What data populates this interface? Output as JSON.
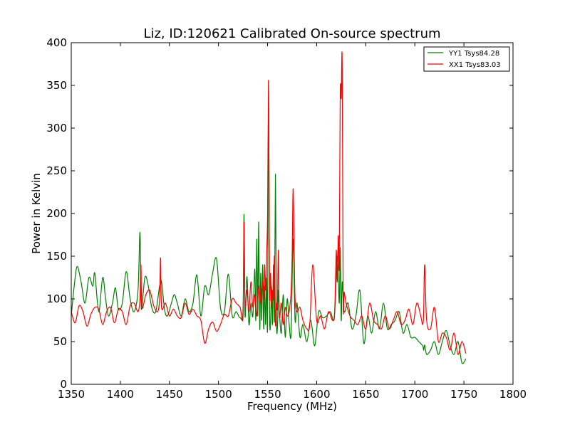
{
  "chart_data": {
    "type": "line",
    "title": "Liz, ID:120621 Calibrated On-source spectrum",
    "xlabel": "Frequency (MHz)",
    "ylabel": "Power in Kelvin",
    "xlim": [
      1350,
      1800
    ],
    "ylim": [
      0,
      400
    ],
    "xticks": [
      "1350",
      "1400",
      "1450",
      "1500",
      "1550",
      "1600",
      "1650",
      "1700",
      "1750",
      "1800"
    ],
    "yticks": [
      "0",
      "50",
      "100",
      "150",
      "200",
      "250",
      "300",
      "350",
      "400"
    ],
    "grid": false,
    "legend_position": "top-right",
    "series": [
      {
        "name": "YY1 Tsys84.28",
        "color": "#008000",
        "x": [
          1350,
          1353,
          1356,
          1360,
          1364,
          1368,
          1372,
          1374,
          1378,
          1382,
          1385,
          1388,
          1392,
          1395,
          1398,
          1402,
          1406,
          1410,
          1414,
          1418,
          1420,
          1421,
          1422,
          1425,
          1428,
          1432,
          1436,
          1440,
          1442,
          1445,
          1448,
          1452,
          1455,
          1458,
          1462,
          1466,
          1470,
          1474,
          1478,
          1482,
          1486,
          1490,
          1494,
          1498,
          1502,
          1506,
          1510,
          1514,
          1518,
          1522,
          1525,
          1526,
          1527,
          1529,
          1531,
          1533,
          1535,
          1537,
          1538,
          1539,
          1540,
          1541,
          1542,
          1543,
          1544,
          1545,
          1546,
          1547,
          1548,
          1549,
          1550,
          1551,
          1552,
          1553,
          1554,
          1555,
          1556,
          1557,
          1558,
          1559,
          1560,
          1561,
          1562,
          1564,
          1566,
          1568,
          1570,
          1572,
          1574,
          1576,
          1578,
          1580,
          1583,
          1586,
          1590,
          1594,
          1598,
          1602,
          1606,
          1610,
          1614,
          1618,
          1621,
          1623,
          1624,
          1625,
          1626,
          1628,
          1632,
          1636,
          1640,
          1644,
          1648,
          1652,
          1656,
          1660,
          1664,
          1668,
          1672,
          1676,
          1680,
          1684,
          1688,
          1692,
          1696,
          1700,
          1704,
          1708,
          1709,
          1710,
          1712,
          1716,
          1720,
          1724,
          1728,
          1732,
          1736,
          1740,
          1744,
          1748,
          1752
        ],
        "values": [
          80,
          115,
          138,
          120,
          95,
          125,
          115,
          130,
          85,
          125,
          100,
          80,
          95,
          113,
          88,
          95,
          132,
          100,
          85,
          110,
          178,
          100,
          90,
          125,
          118,
          90,
          85,
          115,
          120,
          88,
          80,
          95,
          105,
          95,
          80,
          100,
          85,
          95,
          128,
          80,
          115,
          105,
          130,
          147,
          90,
          85,
          129,
          80,
          85,
          78,
          88,
          199,
          80,
          126,
          70,
          95,
          80,
          135,
          75,
          170,
          80,
          190,
          65,
          130,
          75,
          140,
          65,
          115,
          70,
          125,
          70,
          355,
          95,
          70,
          115,
          70,
          140,
          75,
          246,
          80,
          65,
          110,
          85,
          60,
          105,
          55,
          100,
          70,
          60,
          170,
          75,
          95,
          55,
          70,
          50,
          75,
          45,
          85,
          78,
          80,
          85,
          78,
          150,
          95,
          160,
          75,
          120,
          85,
          95,
          65,
          80,
          110,
          48,
          80,
          60,
          85,
          65,
          95,
          65,
          70,
          75,
          85,
          60,
          70,
          55,
          55,
          50,
          45,
          40,
          46,
          35,
          40,
          50,
          35,
          50,
          63,
          45,
          35,
          50,
          25,
          30
        ]
      },
      {
        "name": "XX1 Tsys83.03",
        "color": "#ff0000",
        "x": [
          1350,
          1354,
          1358,
          1362,
          1366,
          1370,
          1374,
          1378,
          1382,
          1386,
          1390,
          1394,
          1398,
          1402,
          1406,
          1410,
          1414,
          1418,
          1420,
          1421,
          1422,
          1426,
          1430,
          1434,
          1438,
          1440,
          1441,
          1442,
          1446,
          1450,
          1454,
          1458,
          1462,
          1466,
          1470,
          1474,
          1478,
          1482,
          1486,
          1490,
          1494,
          1498,
          1502,
          1506,
          1510,
          1514,
          1518,
          1522,
          1525,
          1526,
          1527,
          1529,
          1531,
          1533,
          1535,
          1537,
          1539,
          1541,
          1543,
          1545,
          1546,
          1547,
          1548,
          1549,
          1550,
          1551,
          1552,
          1553,
          1554,
          1555,
          1556,
          1557,
          1558,
          1559,
          1560,
          1561,
          1562,
          1564,
          1566,
          1568,
          1570,
          1572,
          1574,
          1575,
          1576,
          1577,
          1578,
          1580,
          1583,
          1586,
          1590,
          1593,
          1596,
          1600,
          1604,
          1608,
          1612,
          1616,
          1618,
          1619,
          1620,
          1621,
          1622,
          1623,
          1624,
          1625,
          1626,
          1627,
          1628,
          1630,
          1634,
          1638,
          1642,
          1646,
          1650,
          1654,
          1658,
          1662,
          1666,
          1670,
          1674,
          1678,
          1682,
          1686,
          1690,
          1694,
          1698,
          1702,
          1706,
          1708,
          1709,
          1710,
          1712,
          1716,
          1720,
          1724,
          1728,
          1732,
          1736,
          1740,
          1744,
          1748,
          1752
        ],
        "values": [
          85,
          72,
          92,
          85,
          68,
          82,
          90,
          88,
          70,
          85,
          90,
          72,
          88,
          85,
          70,
          92,
          95,
          85,
          100,
          140,
          90,
          105,
          110,
          92,
          85,
          100,
          148,
          90,
          95,
          80,
          88,
          80,
          78,
          95,
          82,
          88,
          80,
          75,
          48,
          65,
          73,
          62,
          70,
          82,
          80,
          100,
          95,
          90,
          80,
          190,
          95,
          110,
          85,
          120,
          90,
          105,
          80,
          115,
          95,
          120,
          100,
          140,
          110,
          150,
          200,
          355,
          110,
          130,
          90,
          110,
          100,
          150,
          70,
          95,
          90,
          157,
          80,
          95,
          70,
          90,
          80,
          85,
          110,
          150,
          229,
          160,
          100,
          85,
          90,
          75,
          65,
          70,
          140,
          75,
          80,
          65,
          85,
          75,
          80,
          110,
          157,
          120,
          174,
          140,
          340,
          335,
          378,
          100,
          108,
          95,
          80,
          75,
          70,
          80,
          65,
          95,
          75,
          70,
          65,
          80,
          65,
          75,
          85,
          70,
          75,
          88,
          70,
          95,
          80,
          70,
          85,
          140,
          75,
          65,
          90,
          50,
          60,
          55,
          40,
          60,
          35,
          50,
          36
        ]
      }
    ]
  }
}
